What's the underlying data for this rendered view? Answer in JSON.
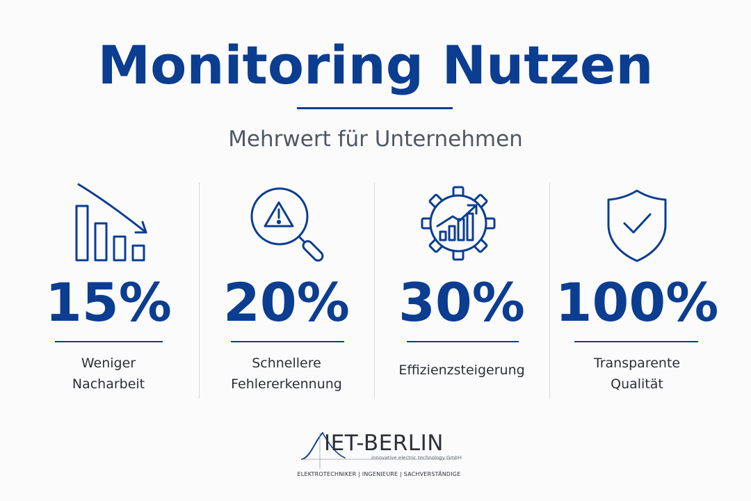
{
  "header": {
    "title": "Monitoring Nutzen",
    "subtitle": "Mehrwert für Unternehmen"
  },
  "colors": {
    "primary": "#0b3d91",
    "text": "#2c2f36",
    "subtitle": "#505864",
    "divider": "#d6d8dc",
    "background": "#fbfbfc"
  },
  "benefits": [
    {
      "value": "15%",
      "label_lines": [
        "Weniger",
        "Nacharbeit"
      ],
      "icon": "declining-bar-chart-icon"
    },
    {
      "value": "20%",
      "label_lines": [
        "Schnellere",
        "Fehlererkennung"
      ],
      "icon": "warning-magnifier-icon"
    },
    {
      "value": "30%",
      "label_lines": [
        "Effizienzsteigerung"
      ],
      "icon": "gear-growth-chart-icon"
    },
    {
      "value": "100%",
      "label_lines": [
        "Transparente",
        "Qualität"
      ],
      "icon": "shield-check-icon"
    }
  ],
  "logo": {
    "name": "IET-BERLIN",
    "tagline": "innovative electric technology GmbH",
    "footer": "ELEKTROTECHNIKER | INGENIEURE | SACHVERSTÄNDIGE"
  }
}
